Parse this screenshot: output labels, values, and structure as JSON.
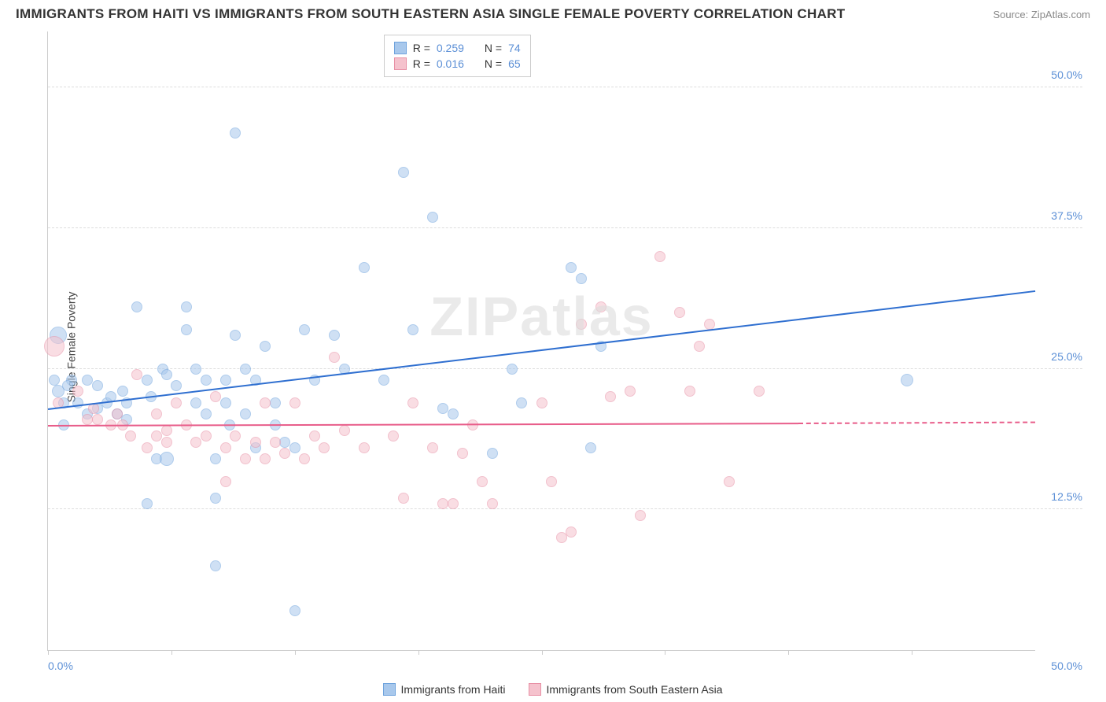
{
  "title": "IMMIGRANTS FROM HAITI VS IMMIGRANTS FROM SOUTH EASTERN ASIA SINGLE FEMALE POVERTY CORRELATION CHART",
  "source": "Source: ZipAtlas.com",
  "watermark": "ZIPatlas",
  "ylabel": "Single Female Poverty",
  "chart": {
    "type": "scatter",
    "xlim": [
      0,
      50
    ],
    "ylim": [
      0,
      55
    ],
    "xtick_positions": [
      0,
      6.25,
      12.5,
      18.75,
      25,
      31.25,
      37.5,
      43.75
    ],
    "xaxis_label_left": "0.0%",
    "xaxis_label_right": "50.0%",
    "yticks": [
      {
        "v": 12.5,
        "label": "12.5%"
      },
      {
        "v": 25.0,
        "label": "25.0%"
      },
      {
        "v": 37.5,
        "label": "37.5%"
      },
      {
        "v": 50.0,
        "label": "50.0%"
      }
    ],
    "background_color": "#ffffff",
    "grid_color": "#dddddd",
    "axis_color": "#cccccc",
    "tick_label_color": "#5b8fd6"
  },
  "series": [
    {
      "name": "Immigrants from Haiti",
      "fill_color": "#a8c8ec",
      "stroke_color": "#6fa3dd",
      "fill_opacity": 0.55,
      "line_color": "#2f6fd0",
      "line_width": 2,
      "R": "0.259",
      "N": "74",
      "trend": {
        "x1": 0,
        "y1": 21.5,
        "x2": 50,
        "y2": 32.0
      },
      "points": [
        {
          "x": 0.3,
          "y": 24,
          "r": 7
        },
        {
          "x": 0.5,
          "y": 28,
          "r": 11
        },
        {
          "x": 0.5,
          "y": 23,
          "r": 8
        },
        {
          "x": 0.8,
          "y": 22,
          "r": 7
        },
        {
          "x": 0.8,
          "y": 20,
          "r": 7
        },
        {
          "x": 1.2,
          "y": 24,
          "r": 7
        },
        {
          "x": 1.0,
          "y": 23.5,
          "r": 7
        },
        {
          "x": 1.5,
          "y": 22,
          "r": 7
        },
        {
          "x": 2.0,
          "y": 24,
          "r": 7
        },
        {
          "x": 2.0,
          "y": 21,
          "r": 7
        },
        {
          "x": 2.5,
          "y": 23.5,
          "r": 7
        },
        {
          "x": 2.5,
          "y": 21.5,
          "r": 7
        },
        {
          "x": 3.0,
          "y": 22,
          "r": 7
        },
        {
          "x": 3.2,
          "y": 22.5,
          "r": 7
        },
        {
          "x": 3.5,
          "y": 21,
          "r": 7
        },
        {
          "x": 3.8,
          "y": 23,
          "r": 7
        },
        {
          "x": 4.0,
          "y": 22,
          "r": 7
        },
        {
          "x": 4.0,
          "y": 20.5,
          "r": 7
        },
        {
          "x": 4.5,
          "y": 30.5,
          "r": 7
        },
        {
          "x": 5.0,
          "y": 24,
          "r": 7
        },
        {
          "x": 5.0,
          "y": 13,
          "r": 7
        },
        {
          "x": 5.2,
          "y": 22.5,
          "r": 7
        },
        {
          "x": 5.5,
          "y": 17,
          "r": 7
        },
        {
          "x": 5.8,
          "y": 25,
          "r": 7
        },
        {
          "x": 6.0,
          "y": 24.5,
          "r": 7
        },
        {
          "x": 6.0,
          "y": 17,
          "r": 9
        },
        {
          "x": 6.5,
          "y": 23.5,
          "r": 7
        },
        {
          "x": 7.0,
          "y": 30.5,
          "r": 7
        },
        {
          "x": 7.0,
          "y": 28.5,
          "r": 7
        },
        {
          "x": 7.5,
          "y": 25,
          "r": 7
        },
        {
          "x": 7.5,
          "y": 22,
          "r": 7
        },
        {
          "x": 8.0,
          "y": 24,
          "r": 7
        },
        {
          "x": 8.0,
          "y": 21,
          "r": 7
        },
        {
          "x": 8.5,
          "y": 17,
          "r": 7
        },
        {
          "x": 8.5,
          "y": 13.5,
          "r": 7
        },
        {
          "x": 8.5,
          "y": 7.5,
          "r": 7
        },
        {
          "x": 9.0,
          "y": 24,
          "r": 7
        },
        {
          "x": 9.0,
          "y": 22,
          "r": 7
        },
        {
          "x": 9.2,
          "y": 20,
          "r": 7
        },
        {
          "x": 9.5,
          "y": 46,
          "r": 7
        },
        {
          "x": 9.5,
          "y": 28,
          "r": 7
        },
        {
          "x": 10.0,
          "y": 25,
          "r": 7
        },
        {
          "x": 10.0,
          "y": 21,
          "r": 7
        },
        {
          "x": 10.5,
          "y": 24,
          "r": 7
        },
        {
          "x": 10.5,
          "y": 18,
          "r": 7
        },
        {
          "x": 11.0,
          "y": 27,
          "r": 7
        },
        {
          "x": 11.5,
          "y": 22,
          "r": 7
        },
        {
          "x": 11.5,
          "y": 20,
          "r": 7
        },
        {
          "x": 12.0,
          "y": 18.5,
          "r": 7
        },
        {
          "x": 12.5,
          "y": 3.5,
          "r": 7
        },
        {
          "x": 12.5,
          "y": 18,
          "r": 7
        },
        {
          "x": 13.0,
          "y": 28.5,
          "r": 7
        },
        {
          "x": 13.5,
          "y": 24,
          "r": 7
        },
        {
          "x": 14.5,
          "y": 28,
          "r": 7
        },
        {
          "x": 15.0,
          "y": 25,
          "r": 7
        },
        {
          "x": 16.0,
          "y": 34,
          "r": 7
        },
        {
          "x": 17.0,
          "y": 24,
          "r": 7
        },
        {
          "x": 18.0,
          "y": 42.5,
          "r": 7
        },
        {
          "x": 18.5,
          "y": 28.5,
          "r": 7
        },
        {
          "x": 19.5,
          "y": 38.5,
          "r": 7
        },
        {
          "x": 20.0,
          "y": 21.5,
          "r": 7
        },
        {
          "x": 20.5,
          "y": 21,
          "r": 7
        },
        {
          "x": 22.5,
          "y": 17.5,
          "r": 7
        },
        {
          "x": 23.5,
          "y": 25,
          "r": 7
        },
        {
          "x": 24.0,
          "y": 22,
          "r": 7
        },
        {
          "x": 26.5,
          "y": 34,
          "r": 7
        },
        {
          "x": 27.0,
          "y": 33,
          "r": 7
        },
        {
          "x": 27.5,
          "y": 18,
          "r": 7
        },
        {
          "x": 28.0,
          "y": 27,
          "r": 7
        },
        {
          "x": 43.5,
          "y": 24,
          "r": 8
        }
      ]
    },
    {
      "name": "Immigrants from South Eastern Asia",
      "fill_color": "#f5c2cd",
      "stroke_color": "#e890a5",
      "fill_opacity": 0.55,
      "line_color": "#e85d8a",
      "line_width": 2,
      "R": "0.016",
      "N": "65",
      "trend_solid": {
        "x1": 0,
        "y1": 20.0,
        "x2": 38,
        "y2": 20.2
      },
      "trend_dash": {
        "x1": 38,
        "y1": 20.2,
        "x2": 50,
        "y2": 20.3
      },
      "points": [
        {
          "x": 0.3,
          "y": 27,
          "r": 13
        },
        {
          "x": 0.5,
          "y": 22,
          "r": 7
        },
        {
          "x": 1.5,
          "y": 23,
          "r": 7
        },
        {
          "x": 2.0,
          "y": 20.5,
          "r": 7
        },
        {
          "x": 2.3,
          "y": 21.5,
          "r": 7
        },
        {
          "x": 2.5,
          "y": 20.5,
          "r": 7
        },
        {
          "x": 3.2,
          "y": 20,
          "r": 7
        },
        {
          "x": 3.5,
          "y": 21,
          "r": 7
        },
        {
          "x": 3.8,
          "y": 20,
          "r": 7
        },
        {
          "x": 4.2,
          "y": 19,
          "r": 7
        },
        {
          "x": 4.5,
          "y": 24.5,
          "r": 7
        },
        {
          "x": 5.0,
          "y": 18,
          "r": 7
        },
        {
          "x": 5.5,
          "y": 19,
          "r": 7
        },
        {
          "x": 5.5,
          "y": 21,
          "r": 7
        },
        {
          "x": 6.0,
          "y": 18.5,
          "r": 7
        },
        {
          "x": 6.0,
          "y": 19.5,
          "r": 7
        },
        {
          "x": 6.5,
          "y": 22,
          "r": 7
        },
        {
          "x": 7.0,
          "y": 20,
          "r": 7
        },
        {
          "x": 7.5,
          "y": 18.5,
          "r": 7
        },
        {
          "x": 8.0,
          "y": 19,
          "r": 7
        },
        {
          "x": 8.5,
          "y": 22.5,
          "r": 7
        },
        {
          "x": 9.0,
          "y": 18,
          "r": 7
        },
        {
          "x": 9.0,
          "y": 15,
          "r": 7
        },
        {
          "x": 9.5,
          "y": 19,
          "r": 7
        },
        {
          "x": 10.0,
          "y": 17,
          "r": 7
        },
        {
          "x": 10.5,
          "y": 18.5,
          "r": 7
        },
        {
          "x": 11.0,
          "y": 17,
          "r": 7
        },
        {
          "x": 11.0,
          "y": 22,
          "r": 7
        },
        {
          "x": 11.5,
          "y": 18.5,
          "r": 7
        },
        {
          "x": 12.0,
          "y": 17.5,
          "r": 7
        },
        {
          "x": 12.5,
          "y": 22,
          "r": 7
        },
        {
          "x": 13.0,
          "y": 17,
          "r": 7
        },
        {
          "x": 13.5,
          "y": 19,
          "r": 7
        },
        {
          "x": 14.0,
          "y": 18,
          "r": 7
        },
        {
          "x": 14.5,
          "y": 26,
          "r": 7
        },
        {
          "x": 15.0,
          "y": 19.5,
          "r": 7
        },
        {
          "x": 16.0,
          "y": 18,
          "r": 7
        },
        {
          "x": 17.5,
          "y": 19,
          "r": 7
        },
        {
          "x": 18.0,
          "y": 13.5,
          "r": 7
        },
        {
          "x": 18.5,
          "y": 22,
          "r": 7
        },
        {
          "x": 19.5,
          "y": 18,
          "r": 7
        },
        {
          "x": 20.0,
          "y": 13,
          "r": 7
        },
        {
          "x": 20.5,
          "y": 13,
          "r": 7
        },
        {
          "x": 21.0,
          "y": 17.5,
          "r": 7
        },
        {
          "x": 21.5,
          "y": 20,
          "r": 7
        },
        {
          "x": 22.0,
          "y": 15,
          "r": 7
        },
        {
          "x": 22.5,
          "y": 13,
          "r": 7
        },
        {
          "x": 25.0,
          "y": 22,
          "r": 7
        },
        {
          "x": 25.5,
          "y": 15,
          "r": 7
        },
        {
          "x": 26.0,
          "y": 10,
          "r": 7
        },
        {
          "x": 26.5,
          "y": 10.5,
          "r": 7
        },
        {
          "x": 27.0,
          "y": 29,
          "r": 7
        },
        {
          "x": 28.0,
          "y": 30.5,
          "r": 7
        },
        {
          "x": 28.5,
          "y": 22.5,
          "r": 7
        },
        {
          "x": 29.5,
          "y": 23,
          "r": 7
        },
        {
          "x": 30.0,
          "y": 12,
          "r": 7
        },
        {
          "x": 31.0,
          "y": 35,
          "r": 7
        },
        {
          "x": 32.0,
          "y": 30,
          "r": 7
        },
        {
          "x": 32.5,
          "y": 23,
          "r": 7
        },
        {
          "x": 33.0,
          "y": 27,
          "r": 7
        },
        {
          "x": 33.5,
          "y": 29,
          "r": 7
        },
        {
          "x": 34.5,
          "y": 15,
          "r": 7
        },
        {
          "x": 36.0,
          "y": 23,
          "r": 7
        }
      ]
    }
  ],
  "legend_labels": {
    "r_prefix": "R = ",
    "n_prefix": "N = "
  },
  "bottom_legend": [
    {
      "label": "Immigrants from Haiti",
      "swatch_fill": "#a8c8ec",
      "swatch_stroke": "#6fa3dd"
    },
    {
      "label": "Immigrants from South Eastern Asia",
      "swatch_fill": "#f5c2cd",
      "swatch_stroke": "#e890a5"
    }
  ]
}
